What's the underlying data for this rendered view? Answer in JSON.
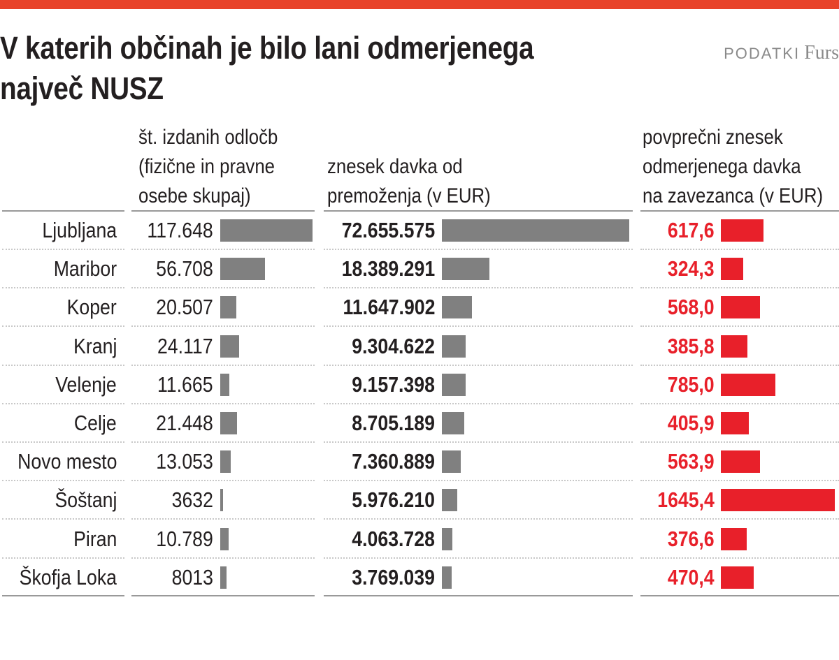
{
  "header": {
    "title_line1": "V katerih občinah je bilo lani odmerjenega",
    "title_line2": "največ NUSZ",
    "source_label": "PODATKI",
    "source_org": "Furs",
    "accent_color": "#e8432a"
  },
  "chart_data": {
    "type": "table",
    "columns": [
      {
        "lines": [
          "št. izdanih odločb",
          "(fizične in pravne",
          "osebe skupaj)"
        ],
        "bar_color": "#808080"
      },
      {
        "lines": [
          "znesek davka od",
          "premoženja (v EUR)"
        ],
        "bar_color": "#808080"
      },
      {
        "lines": [
          "povprečni znesek",
          "odmerjenega davka",
          "na zavezanca (v EUR)"
        ],
        "bar_color": "#e8202a"
      }
    ],
    "rows": [
      {
        "name": "Ljubljana",
        "v1": 117648,
        "l1": "117.648",
        "v2": 72655575,
        "l2": "72.655.575",
        "v3": 617.6,
        "l3": "617,6"
      },
      {
        "name": "Maribor",
        "v1": 56708,
        "l1": "56.708",
        "v2": 18389291,
        "l2": "18.389.291",
        "v3": 324.3,
        "l3": "324,3"
      },
      {
        "name": "Koper",
        "v1": 20507,
        "l1": "20.507",
        "v2": 11647902,
        "l2": "11.647.902",
        "v3": 568.0,
        "l3": "568,0"
      },
      {
        "name": "Kranj",
        "v1": 24117,
        "l1": "24.117",
        "v2": 9304622,
        "l2": "9.304.622",
        "v3": 385.8,
        "l3": "385,8"
      },
      {
        "name": "Velenje",
        "v1": 11665,
        "l1": "11.665",
        "v2": 9157398,
        "l2": "9.157.398",
        "v3": 785.0,
        "l3": "785,0"
      },
      {
        "name": "Celje",
        "v1": 21448,
        "l1": "21.448",
        "v2": 8705189,
        "l2": "8.705.189",
        "v3": 405.9,
        "l3": "405,9"
      },
      {
        "name": "Novo mesto",
        "v1": 13053,
        "l1": "13.053",
        "v2": 7360889,
        "l2": "7.360.889",
        "v3": 563.9,
        "l3": "563,9"
      },
      {
        "name": "Šoštanj",
        "v1": 3632,
        "l1": "3632",
        "v2": 5976210,
        "l2": "5.976.210",
        "v3": 1645.4,
        "l3": "1645,4"
      },
      {
        "name": "Piran",
        "v1": 10789,
        "l1": "10.789",
        "v2": 4063728,
        "l2": "4.063.728",
        "v3": 376.6,
        "l3": "376,6"
      },
      {
        "name": "Škofja Loka",
        "v1": 8013,
        "l1": "8013",
        "v2": 3769039,
        "l2": "3.769.039",
        "v3": 470.4,
        "l3": "470,4"
      }
    ]
  }
}
